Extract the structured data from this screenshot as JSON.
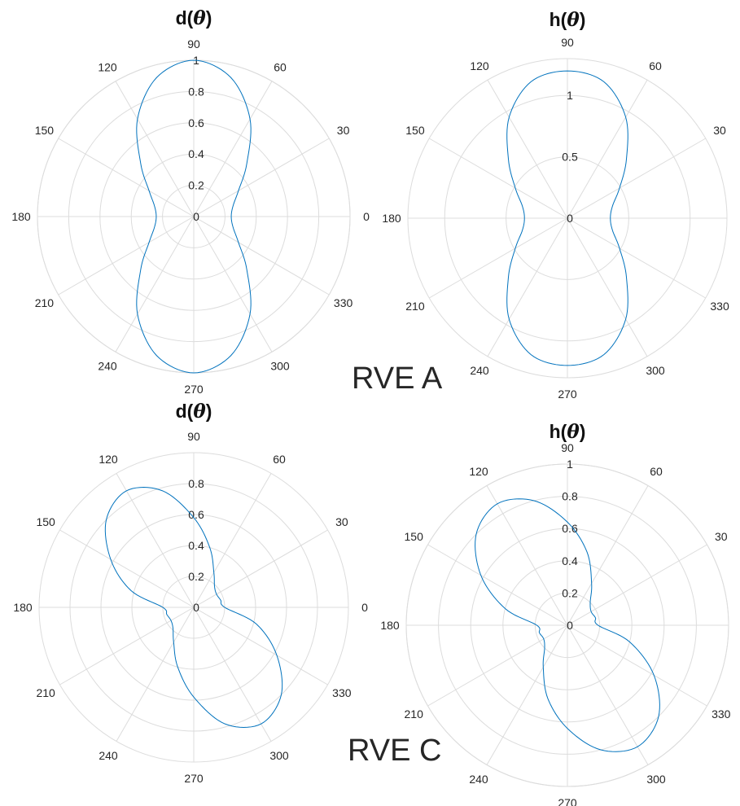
{
  "chart_data": [
    {
      "type": "polar-line",
      "panel": "d-theta-rve-a",
      "title": "d(θ)",
      "rlim": [
        0,
        1
      ],
      "r_ticks": [
        "0",
        "0.2",
        "0.4",
        "0.6",
        "0.8",
        "1"
      ],
      "theta_ticks": [
        "0",
        "30",
        "60",
        "90",
        "120",
        "150",
        "180",
        "210",
        "240",
        "270",
        "300",
        "330"
      ],
      "grid": true,
      "series": [
        {
          "theta_deg": [
            0,
            15,
            30,
            45,
            60,
            75,
            90,
            105,
            120,
            135,
            150,
            165,
            180,
            195,
            210,
            225,
            240,
            255,
            270,
            285,
            300,
            315,
            330,
            345
          ],
          "r": [
            0.24,
            0.26,
            0.33,
            0.48,
            0.72,
            0.92,
            1.0,
            0.92,
            0.72,
            0.48,
            0.33,
            0.26,
            0.24,
            0.26,
            0.33,
            0.48,
            0.72,
            0.92,
            1.0,
            0.92,
            0.72,
            0.48,
            0.33,
            0.26
          ],
          "color": "#0072bd"
        }
      ]
    },
    {
      "type": "polar-line",
      "panel": "h-theta-rve-a",
      "title": "h(θ)",
      "rlim": [
        0,
        1.3
      ],
      "r_ticks": [
        "0",
        "0.5",
        "1"
      ],
      "theta_ticks": [
        "0",
        "30",
        "60",
        "90",
        "120",
        "150",
        "180",
        "210",
        "240",
        "270",
        "300",
        "330"
      ],
      "grid": true,
      "series": [
        {
          "theta_deg": [
            0,
            15,
            30,
            45,
            60,
            75,
            90,
            105,
            120,
            135,
            150,
            165,
            180,
            195,
            210,
            225,
            240,
            255,
            270,
            285,
            300,
            315,
            330,
            345
          ],
          "r": [
            0.35,
            0.38,
            0.49,
            0.68,
            0.95,
            1.15,
            1.2,
            1.15,
            0.95,
            0.68,
            0.49,
            0.38,
            0.35,
            0.38,
            0.49,
            0.68,
            0.95,
            1.15,
            1.2,
            1.15,
            0.95,
            0.68,
            0.49,
            0.38
          ],
          "color": "#0072bd"
        }
      ]
    },
    {
      "type": "polar-line",
      "panel": "d-theta-rve-c",
      "title": "d(θ)",
      "rlim": [
        0,
        1
      ],
      "r_ticks": [
        "0",
        "0.2",
        "0.4",
        "0.6",
        "0.8"
      ],
      "theta_ticks": [
        "0",
        "30",
        "60",
        "90",
        "120",
        "150",
        "180",
        "210",
        "240",
        "270",
        "300",
        "330"
      ],
      "grid": true,
      "series": [
        {
          "theta_deg": [
            0,
            15,
            30,
            45,
            60,
            75,
            90,
            105,
            120,
            135,
            150,
            165,
            180,
            195,
            210,
            225,
            240,
            255,
            270,
            285,
            300,
            315,
            330,
            345
          ],
          "r": [
            0.2,
            0.18,
            0.17,
            0.19,
            0.26,
            0.4,
            0.58,
            0.78,
            0.87,
            0.8,
            0.62,
            0.42,
            0.2,
            0.18,
            0.17,
            0.19,
            0.26,
            0.4,
            0.58,
            0.78,
            0.87,
            0.8,
            0.62,
            0.42
          ],
          "color": "#0072bd"
        }
      ]
    },
    {
      "type": "polar-line",
      "panel": "h-theta-rve-c",
      "title": "h(θ)",
      "rlim": [
        0,
        1
      ],
      "r_ticks": [
        "0",
        "0.2",
        "0.4",
        "0.6",
        "0.8",
        "1"
      ],
      "theta_ticks": [
        "0",
        "30",
        "60",
        "90",
        "120",
        "150",
        "180",
        "210",
        "240",
        "270",
        "300",
        "330"
      ],
      "grid": true,
      "series": [
        {
          "theta_deg": [
            0,
            15,
            30,
            45,
            60,
            75,
            90,
            105,
            120,
            135,
            150,
            165,
            180,
            195,
            210,
            225,
            240,
            255,
            270,
            285,
            300,
            315,
            330,
            345
          ],
          "r": [
            0.19,
            0.18,
            0.17,
            0.2,
            0.3,
            0.47,
            0.64,
            0.8,
            0.87,
            0.8,
            0.62,
            0.4,
            0.19,
            0.18,
            0.17,
            0.2,
            0.3,
            0.47,
            0.64,
            0.8,
            0.87,
            0.8,
            0.62,
            0.4
          ],
          "color": "#0072bd"
        }
      ]
    }
  ],
  "annotations": {
    "rve_a": "RVE A",
    "rve_c": "RVE C"
  }
}
